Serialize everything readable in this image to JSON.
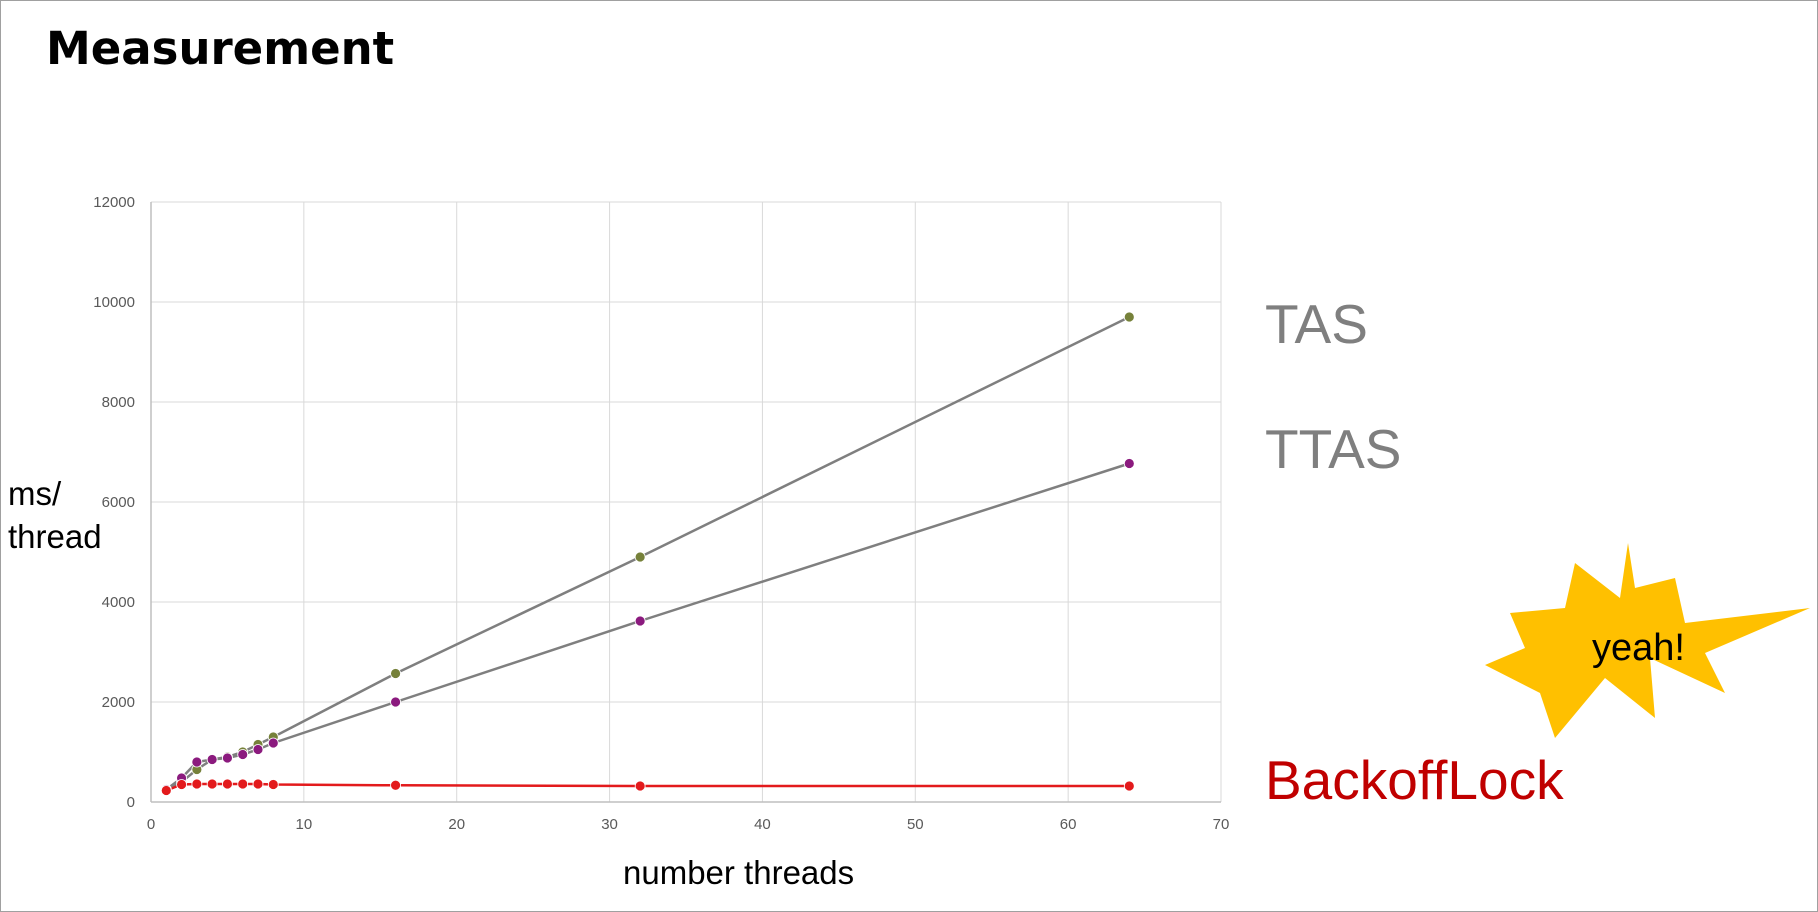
{
  "slide": {
    "title": "Measurement"
  },
  "annotation": {
    "text": "yeah!",
    "color": "#ffc000"
  },
  "chart_data": {
    "type": "line",
    "title": "",
    "xlabel": "number threads",
    "ylabel": "ms/\nthread",
    "xlim": [
      0,
      70
    ],
    "ylim": [
      0,
      12000
    ],
    "xticks": [
      0,
      10,
      20,
      30,
      40,
      50,
      60,
      70
    ],
    "yticks": [
      0,
      2000,
      4000,
      6000,
      8000,
      10000,
      12000
    ],
    "grid": true,
    "legend": "right, as direct labels",
    "series": [
      {
        "name": "TAS",
        "label_color": "#7f7f7f",
        "line_color": "#7f7f7f",
        "marker_color": "#76813a",
        "x": [
          1,
          2,
          3,
          4,
          5,
          6,
          7,
          8,
          16,
          32,
          64
        ],
        "y": [
          250,
          400,
          650,
          850,
          900,
          1000,
          1150,
          1300,
          2570,
          4900,
          9700
        ]
      },
      {
        "name": "TTAS",
        "label_color": "#7f7f7f",
        "line_color": "#7f7f7f",
        "marker_color": "#8b1a7e",
        "x": [
          1,
          2,
          3,
          4,
          5,
          6,
          7,
          8,
          16,
          32,
          64
        ],
        "y": [
          250,
          480,
          800,
          850,
          880,
          950,
          1050,
          1180,
          2000,
          3620,
          6770
        ]
      },
      {
        "name": "BackoffLock",
        "label_color": "#c00000",
        "line_color": "#e31a1c",
        "marker_color": "#e31a1c",
        "x": [
          1,
          2,
          3,
          4,
          5,
          6,
          7,
          8,
          16,
          32,
          64
        ],
        "y": [
          230,
          350,
          360,
          360,
          360,
          360,
          360,
          350,
          335,
          320,
          320
        ]
      }
    ]
  }
}
